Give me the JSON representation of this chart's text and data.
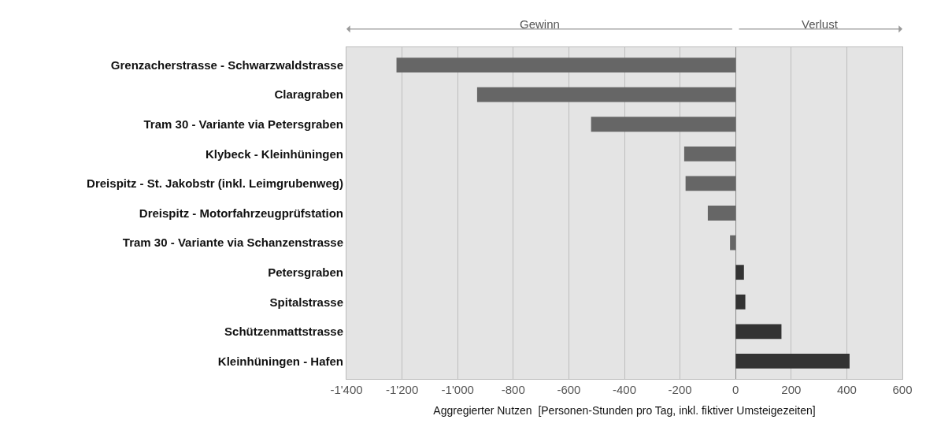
{
  "chart_data": {
    "type": "bar",
    "orientation": "horizontal",
    "xlabel": "Aggregierter Nutzen  [Personen-Stunden pro Tag, inkl. fiktiver Umsteigezeiten]",
    "categories": [
      "Grenzacherstrasse - Schwarzwaldstrasse",
      "Claragraben",
      "Tram 30 - Variante via Petersgraben",
      "Klybeck - Kleinhüningen",
      "Dreispitz - St. Jakobstr (inkl. Leimgrubenweg)",
      "Dreispitz - Motorfahrzeugprüfstation",
      "Tram 30 - Variante via Schanzenstrasse",
      "Petersgraben",
      "Spitalstrasse",
      "Schützenmattstrasse",
      "Kleinhüningen - Hafen"
    ],
    "values": [
      -1220,
      -930,
      -520,
      -185,
      -180,
      -100,
      -20,
      30,
      35,
      165,
      410
    ],
    "colors": [
      "#666666",
      "#666666",
      "#666666",
      "#666666",
      "#666666",
      "#666666",
      "#666666",
      "#333333",
      "#333333",
      "#333333",
      "#333333"
    ],
    "xlim": [
      -1400,
      600
    ],
    "xticks": [
      {
        "value": -1400,
        "label": "-1'400"
      },
      {
        "value": -1200,
        "label": "-1'200"
      },
      {
        "value": -1000,
        "label": "-1'000"
      },
      -800,
      -600,
      -400,
      -200,
      0,
      200,
      400,
      600
    ],
    "grid": "x",
    "annotations": [
      "Gewinn",
      "Verlust"
    ]
  }
}
